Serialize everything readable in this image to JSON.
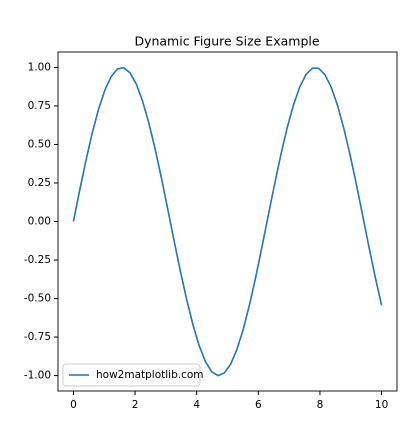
{
  "chart_data": {
    "type": "line",
    "title": "Dynamic Figure Size Example",
    "x": [
      0,
      0.204,
      0.408,
      0.612,
      0.816,
      1.02,
      1.224,
      1.429,
      1.633,
      1.837,
      2.041,
      2.245,
      2.449,
      2.653,
      2.857,
      3.061,
      3.265,
      3.469,
      3.673,
      3.878,
      4.082,
      4.286,
      4.49,
      4.694,
      4.898,
      5.102,
      5.306,
      5.51,
      5.714,
      5.918,
      6.122,
      6.327,
      6.531,
      6.735,
      6.939,
      7.143,
      7.347,
      7.551,
      7.755,
      7.959,
      8.163,
      8.367,
      8.571,
      8.776,
      8.98,
      9.184,
      9.388,
      9.592,
      9.796,
      10
    ],
    "series": [
      {
        "name": "how2matplotlib.com",
        "color": "#1f77b4",
        "values": [
          0,
          0.203,
          0.397,
          0.575,
          0.729,
          0.852,
          0.94,
          0.99,
          0.998,
          0.965,
          0.892,
          0.781,
          0.638,
          0.469,
          0.281,
          0.08,
          -0.123,
          -0.321,
          -0.504,
          -0.67,
          -0.806,
          -0.91,
          -0.976,
          -1.0,
          -0.983,
          -0.926,
          -0.83,
          -0.7,
          -0.54,
          -0.359,
          -0.161,
          0.044,
          0.245,
          0.437,
          0.61,
          0.758,
          0.874,
          0.955,
          0.995,
          0.994,
          0.952,
          0.871,
          0.753,
          0.603,
          0.43,
          0.239,
          0.037,
          -0.167,
          -0.363,
          -0.544
        ]
      }
    ],
    "xlim": [
      -0.5,
      10.5
    ],
    "ylim": [
      -1.1,
      1.1
    ],
    "xticks": [
      0,
      2,
      4,
      6,
      8,
      10
    ],
    "yticks": [
      {
        "value": -1,
        "label": "-1.00"
      },
      {
        "value": -0.75,
        "label": "-0.75"
      },
      {
        "value": -0.5,
        "label": "-0.50"
      },
      {
        "value": -0.25,
        "label": "-0.25"
      },
      {
        "value": 0,
        "label": "0.00"
      },
      {
        "value": 0.25,
        "label": "0.25"
      },
      {
        "value": 0.5,
        "label": "0.50"
      },
      {
        "value": 0.75,
        "label": "0.75"
      },
      {
        "value": 1,
        "label": "1.00"
      }
    ],
    "legend": "lower left",
    "grid": false
  }
}
